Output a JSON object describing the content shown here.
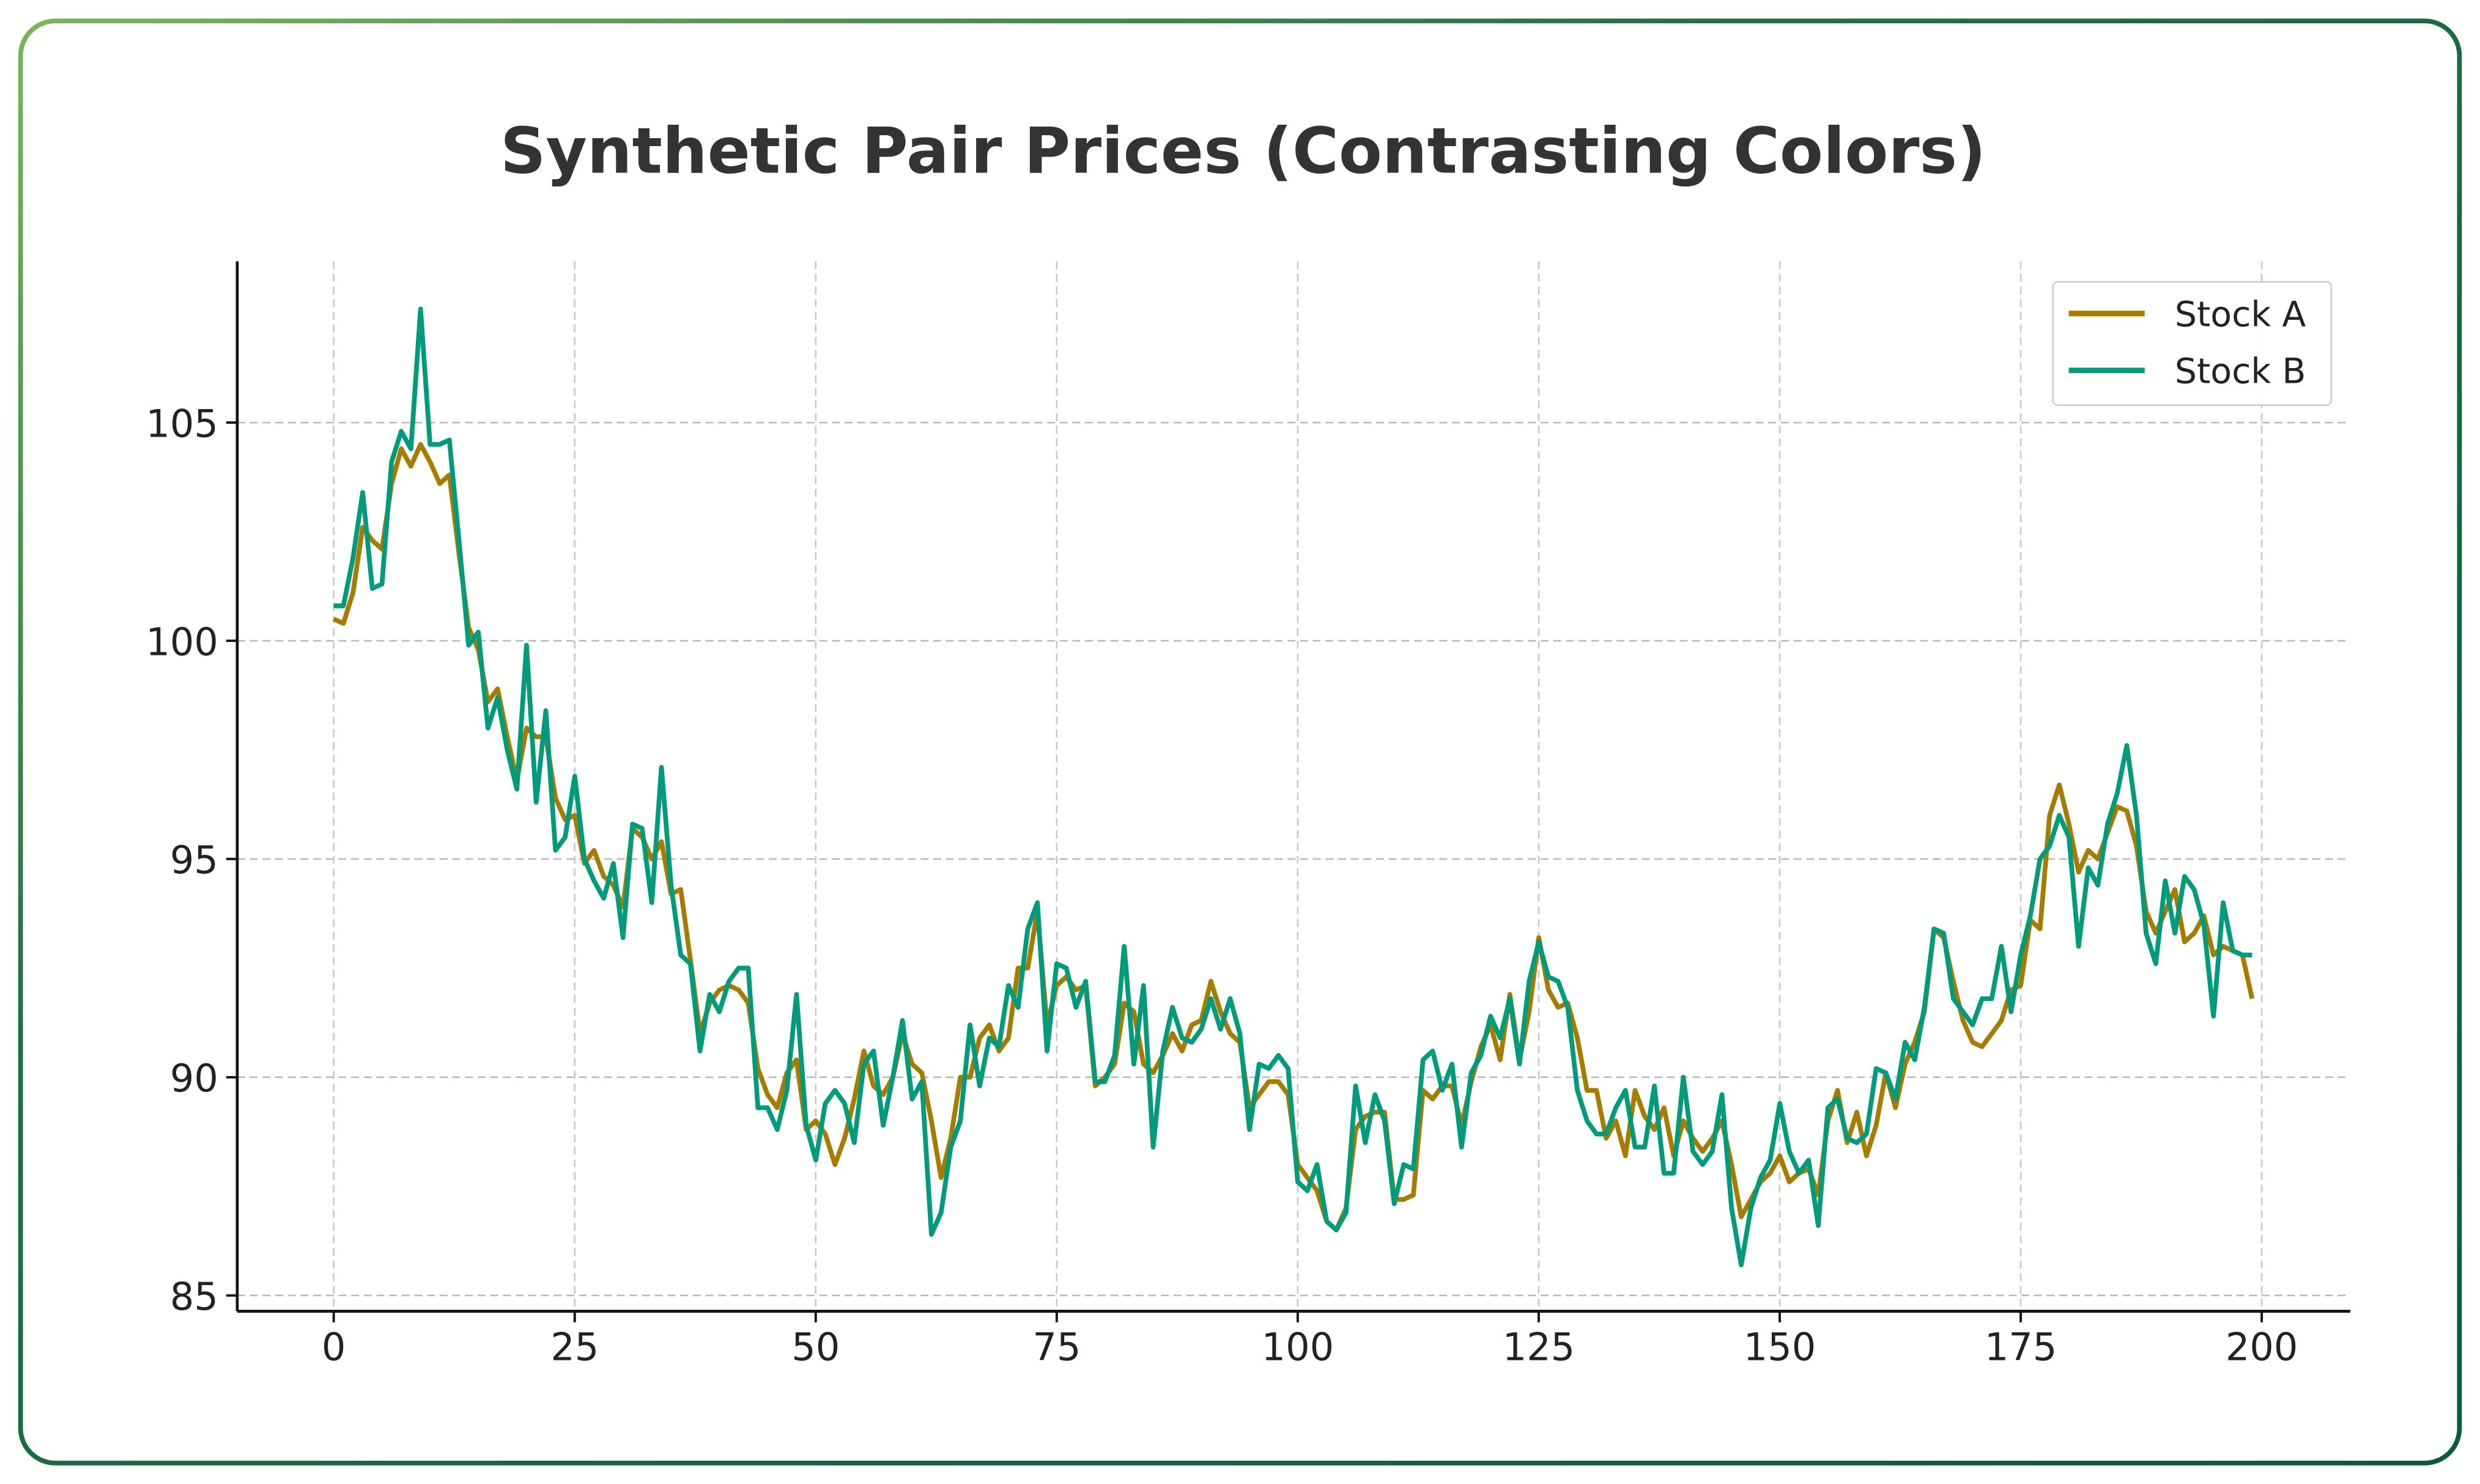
{
  "chart_data": {
    "type": "line",
    "title": "Synthetic Pair Prices (Contrasting Colors)",
    "xlabel": "",
    "ylabel": "",
    "xlim": [
      -10,
      209
    ],
    "ylim": [
      84.6,
      108.6
    ],
    "xticks": [
      0,
      25,
      50,
      75,
      100,
      125,
      150,
      175,
      200
    ],
    "yticks": [
      85,
      90,
      95,
      100,
      105
    ],
    "grid": true,
    "legend_position": "top-right",
    "series": [
      {
        "name": "Stock A",
        "color": "#a67c00",
        "values": [
          100.5,
          100.4,
          101.1,
          102.6,
          102.3,
          102.1,
          103.6,
          104.4,
          104.0,
          104.5,
          104.1,
          103.6,
          103.8,
          102.0,
          100.3,
          99.8,
          98.6,
          98.9,
          97.8,
          96.8,
          98.0,
          97.8,
          97.8,
          96.4,
          95.9,
          96.0,
          94.9,
          95.2,
          94.6,
          94.4,
          93.9,
          95.7,
          95.5,
          95.0,
          95.4,
          94.2,
          94.3,
          92.7,
          91.0,
          91.7,
          92.0,
          92.1,
          92.0,
          91.7,
          90.2,
          89.6,
          89.3,
          90.1,
          90.4,
          88.8,
          89.0,
          88.7,
          88.0,
          88.6,
          89.5,
          90.6,
          89.8,
          89.6,
          90.0,
          91.0,
          90.3,
          90.1,
          89.0,
          87.7,
          88.6,
          90.0,
          90.0,
          90.9,
          91.2,
          90.6,
          90.9,
          92.5,
          92.5,
          93.8,
          91.2,
          92.1,
          92.3,
          92.0,
          92.1,
          89.8,
          90.0,
          90.3,
          91.7,
          91.5,
          90.3,
          90.1,
          90.5,
          91.0,
          90.6,
          91.2,
          91.3,
          92.2,
          91.5,
          91.0,
          90.8,
          89.3,
          89.6,
          89.9,
          89.9,
          89.6,
          88.0,
          87.7,
          87.4,
          86.7,
          86.5,
          87.0,
          88.8,
          89.1,
          89.2,
          89.2,
          87.2,
          87.2,
          87.3,
          89.7,
          89.5,
          89.8,
          89.8,
          88.9,
          89.9,
          90.7,
          91.2,
          90.4,
          91.9,
          90.4,
          91.5,
          93.2,
          92.0,
          91.6,
          91.7,
          90.9,
          89.7,
          89.7,
          88.6,
          89.0,
          88.2,
          89.7,
          89.1,
          88.8,
          89.3,
          88.2,
          89.0,
          88.6,
          88.3,
          88.6,
          89.0,
          88.0,
          86.8,
          87.2,
          87.6,
          87.8,
          88.2,
          87.6,
          87.8,
          87.9,
          87.3,
          89.0,
          89.7,
          88.5,
          89.2,
          88.2,
          88.9,
          90.1,
          89.3,
          90.3,
          90.8,
          91.5,
          93.4,
          93.2,
          92.2,
          91.3,
          90.8,
          90.7,
          91.0,
          91.3,
          92.0,
          92.1,
          93.6,
          93.4,
          96.0,
          96.7,
          95.8,
          94.7,
          95.2,
          95.0,
          95.6,
          96.2,
          96.1,
          95.3,
          93.8,
          93.3,
          93.8,
          94.3,
          93.1,
          93.3,
          93.7,
          92.8,
          93.0,
          92.9,
          92.8,
          91.8
        ]
      },
      {
        "name": "Stock B",
        "color": "#009b7d",
        "values": [
          100.8,
          100.8,
          101.9,
          103.4,
          101.2,
          101.3,
          104.1,
          104.8,
          104.4,
          107.6,
          104.5,
          104.5,
          104.6,
          102.3,
          99.9,
          100.2,
          98.0,
          98.7,
          97.5,
          96.6,
          99.9,
          96.3,
          98.4,
          95.2,
          95.5,
          96.9,
          95.0,
          94.5,
          94.1,
          94.9,
          93.2,
          95.8,
          95.7,
          94.0,
          97.1,
          94.4,
          92.8,
          92.6,
          90.6,
          91.9,
          91.5,
          92.2,
          92.5,
          92.5,
          89.3,
          89.3,
          88.8,
          89.7,
          91.9,
          88.9,
          88.1,
          89.4,
          89.7,
          89.4,
          88.5,
          90.3,
          90.6,
          88.9,
          90.0,
          91.3,
          89.5,
          89.9,
          86.4,
          86.9,
          88.4,
          89.0,
          91.2,
          89.8,
          90.9,
          90.7,
          92.1,
          91.6,
          93.4,
          94.0,
          90.6,
          92.6,
          92.5,
          91.6,
          92.2,
          89.9,
          89.9,
          90.5,
          93.0,
          90.3,
          92.1,
          88.4,
          90.6,
          91.6,
          90.9,
          90.8,
          91.1,
          91.8,
          91.1,
          91.8,
          91.0,
          88.8,
          90.3,
          90.2,
          90.5,
          90.2,
          87.6,
          87.4,
          88.0,
          86.7,
          86.5,
          86.9,
          89.8,
          88.5,
          89.6,
          89.0,
          87.1,
          88.0,
          87.9,
          90.4,
          90.6,
          89.7,
          90.3,
          88.4,
          90.1,
          90.5,
          91.4,
          90.9,
          91.8,
          90.3,
          92.2,
          93.1,
          92.3,
          92.2,
          91.6,
          89.7,
          89.0,
          88.7,
          88.7,
          89.3,
          89.7,
          88.4,
          88.4,
          89.8,
          87.8,
          87.8,
          90.0,
          88.3,
          88.0,
          88.3,
          89.6,
          87.0,
          85.7,
          87.0,
          87.7,
          88.1,
          89.4,
          88.3,
          87.8,
          88.1,
          86.6,
          89.3,
          89.5,
          88.6,
          88.5,
          88.7,
          90.2,
          90.1,
          89.5,
          90.8,
          90.4,
          91.6,
          93.4,
          93.3,
          91.8,
          91.5,
          91.2,
          91.8,
          91.8,
          93.0,
          91.5,
          92.8,
          93.7,
          95.0,
          95.3,
          96.0,
          95.5,
          93.0,
          94.8,
          94.4,
          95.8,
          96.5,
          97.6,
          96.0,
          93.3,
          92.6,
          94.5,
          93.3,
          94.6,
          94.3,
          93.5,
          91.4,
          94.0,
          92.9,
          92.8,
          92.8
        ]
      }
    ]
  },
  "colors": {
    "frame_start": "#7ab55c",
    "frame_end": "#0b5a3c"
  }
}
